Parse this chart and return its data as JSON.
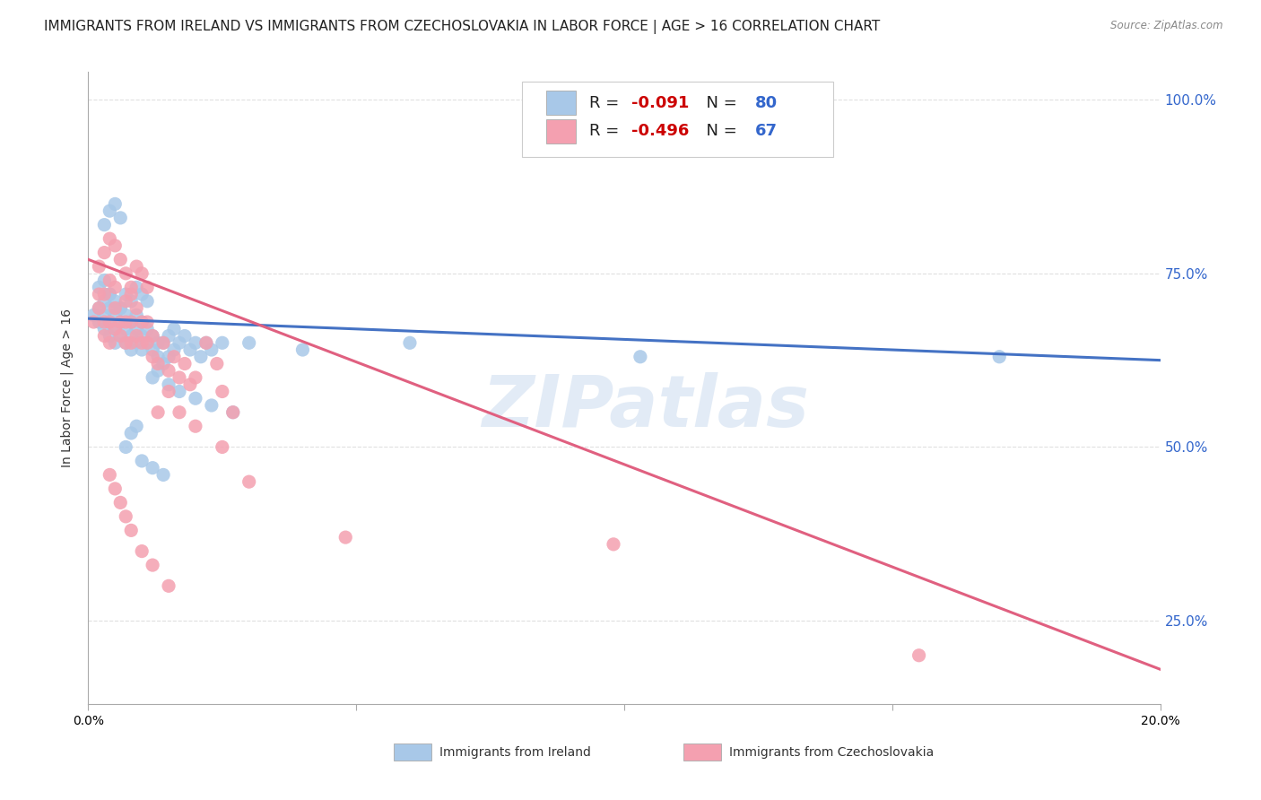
{
  "title": "IMMIGRANTS FROM IRELAND VS IMMIGRANTS FROM CZECHOSLOVAKIA IN LABOR FORCE | AGE > 16 CORRELATION CHART",
  "source": "Source: ZipAtlas.com",
  "ylabel": "In Labor Force | Age > 16",
  "xlim": [
    0.0,
    0.2
  ],
  "ylim": [
    0.13,
    1.04
  ],
  "ireland_R": "-0.091",
  "ireland_N": "80",
  "czech_R": "-0.496",
  "czech_N": "67",
  "ireland_color": "#a8c8e8",
  "czech_color": "#f4a0b0",
  "ireland_line_color": "#4472c4",
  "czech_line_color": "#e06080",
  "background_color": "#ffffff",
  "grid_color": "#e0e0e0",
  "watermark": "ZIPatlas",
  "legend_label_ireland": "Immigrants from Ireland",
  "legend_label_czech": "Immigrants from Czechoslovakia",
  "legend_text_color": "#333399",
  "legend_r_color": "#cc0000",
  "legend_n_color": "#3366cc",
  "ireland_scatter_x": [
    0.001,
    0.002,
    0.002,
    0.003,
    0.003,
    0.003,
    0.004,
    0.004,
    0.004,
    0.004,
    0.005,
    0.005,
    0.005,
    0.006,
    0.006,
    0.006,
    0.007,
    0.007,
    0.007,
    0.008,
    0.008,
    0.008,
    0.009,
    0.009,
    0.009,
    0.01,
    0.01,
    0.01,
    0.011,
    0.011,
    0.012,
    0.012,
    0.013,
    0.013,
    0.014,
    0.014,
    0.015,
    0.015,
    0.016,
    0.016,
    0.017,
    0.018,
    0.019,
    0.02,
    0.021,
    0.022,
    0.023,
    0.025,
    0.027,
    0.03,
    0.002,
    0.003,
    0.004,
    0.005,
    0.006,
    0.007,
    0.008,
    0.009,
    0.01,
    0.011,
    0.012,
    0.013,
    0.015,
    0.017,
    0.02,
    0.023,
    0.003,
    0.004,
    0.005,
    0.006,
    0.007,
    0.008,
    0.009,
    0.01,
    0.012,
    0.014,
    0.103,
    0.06,
    0.04,
    0.17
  ],
  "ireland_scatter_y": [
    0.69,
    0.68,
    0.7,
    0.67,
    0.69,
    0.71,
    0.66,
    0.68,
    0.7,
    0.72,
    0.65,
    0.67,
    0.69,
    0.66,
    0.68,
    0.7,
    0.65,
    0.67,
    0.69,
    0.64,
    0.66,
    0.68,
    0.65,
    0.67,
    0.69,
    0.64,
    0.66,
    0.68,
    0.65,
    0.67,
    0.64,
    0.66,
    0.63,
    0.65,
    0.62,
    0.65,
    0.63,
    0.66,
    0.64,
    0.67,
    0.65,
    0.66,
    0.64,
    0.65,
    0.63,
    0.65,
    0.64,
    0.65,
    0.55,
    0.65,
    0.73,
    0.74,
    0.72,
    0.71,
    0.7,
    0.72,
    0.71,
    0.73,
    0.72,
    0.71,
    0.6,
    0.61,
    0.59,
    0.58,
    0.57,
    0.56,
    0.82,
    0.84,
    0.85,
    0.83,
    0.5,
    0.52,
    0.53,
    0.48,
    0.47,
    0.46,
    0.63,
    0.65,
    0.64,
    0.63
  ],
  "czech_scatter_x": [
    0.001,
    0.002,
    0.002,
    0.003,
    0.003,
    0.003,
    0.004,
    0.004,
    0.004,
    0.005,
    0.005,
    0.005,
    0.006,
    0.006,
    0.007,
    0.007,
    0.007,
    0.008,
    0.008,
    0.008,
    0.009,
    0.009,
    0.01,
    0.01,
    0.011,
    0.011,
    0.012,
    0.012,
    0.013,
    0.014,
    0.015,
    0.016,
    0.017,
    0.018,
    0.019,
    0.02,
    0.022,
    0.024,
    0.025,
    0.027,
    0.002,
    0.003,
    0.004,
    0.005,
    0.006,
    0.007,
    0.008,
    0.009,
    0.01,
    0.011,
    0.013,
    0.015,
    0.017,
    0.02,
    0.025,
    0.03,
    0.004,
    0.005,
    0.006,
    0.007,
    0.008,
    0.01,
    0.012,
    0.015,
    0.048,
    0.098,
    0.155
  ],
  "czech_scatter_y": [
    0.68,
    0.7,
    0.72,
    0.66,
    0.68,
    0.72,
    0.65,
    0.68,
    0.74,
    0.67,
    0.7,
    0.73,
    0.66,
    0.68,
    0.65,
    0.68,
    0.71,
    0.65,
    0.68,
    0.72,
    0.66,
    0.7,
    0.65,
    0.68,
    0.65,
    0.68,
    0.63,
    0.66,
    0.62,
    0.65,
    0.61,
    0.63,
    0.6,
    0.62,
    0.59,
    0.6,
    0.65,
    0.62,
    0.58,
    0.55,
    0.76,
    0.78,
    0.8,
    0.79,
    0.77,
    0.75,
    0.73,
    0.76,
    0.75,
    0.73,
    0.55,
    0.58,
    0.55,
    0.53,
    0.5,
    0.45,
    0.46,
    0.44,
    0.42,
    0.4,
    0.38,
    0.35,
    0.33,
    0.3,
    0.37,
    0.36,
    0.2
  ],
  "title_fontsize": 11,
  "axis_label_fontsize": 10,
  "tick_fontsize": 10,
  "legend_fontsize": 13
}
